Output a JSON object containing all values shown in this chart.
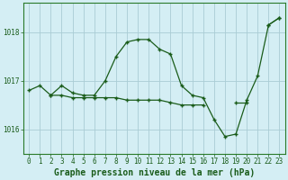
{
  "xlabel": "Graphe pression niveau de la mer (hPa)",
  "series": [
    [
      1016.8,
      1016.9,
      1016.7,
      1016.9,
      1016.75,
      1016.7,
      1016.7,
      1017.0,
      1017.5,
      1017.8,
      1017.85,
      1017.85,
      1017.65,
      1017.55,
      1016.9,
      1016.7,
      1016.65,
      1016.2,
      1015.85,
      1015.9,
      1016.6,
      1017.1,
      1018.15,
      1018.3
    ],
    [
      1016.8,
      null,
      1016.7,
      1016.7,
      1016.65,
      1016.65,
      1016.65,
      1016.65,
      1016.65,
      1016.6,
      1016.6,
      1016.6,
      1016.6,
      1016.55,
      1016.5,
      1016.5,
      1016.5,
      null,
      null,
      1016.55,
      1016.55,
      null,
      null,
      1018.3
    ],
    [
      1016.8,
      null,
      null,
      null,
      null,
      null,
      null,
      null,
      null,
      null,
      null,
      null,
      null,
      null,
      null,
      null,
      null,
      null,
      null,
      null,
      null,
      null,
      1018.15,
      1018.3
    ]
  ],
  "x_values": [
    0,
    1,
    2,
    3,
    4,
    5,
    6,
    7,
    8,
    9,
    10,
    11,
    12,
    13,
    14,
    15,
    16,
    17,
    18,
    19,
    20,
    21,
    22,
    23
  ],
  "ylim": [
    1015.5,
    1018.6
  ],
  "yticks": [
    1016,
    1017,
    1018
  ],
  "xlim": [
    -0.5,
    23.5
  ],
  "xticks": [
    0,
    1,
    2,
    3,
    4,
    5,
    6,
    7,
    8,
    9,
    10,
    11,
    12,
    13,
    14,
    15,
    16,
    17,
    18,
    19,
    20,
    21,
    22,
    23
  ],
  "line_color": "#1a5c1a",
  "marker_color": "#1a5c1a",
  "bg_color": "#d4eef4",
  "grid_color": "#aaccd4",
  "axis_color": "#2a7a2a",
  "label_color": "#1a5c1a",
  "tick_fontsize": 5.5,
  "label_fontsize": 7.0
}
